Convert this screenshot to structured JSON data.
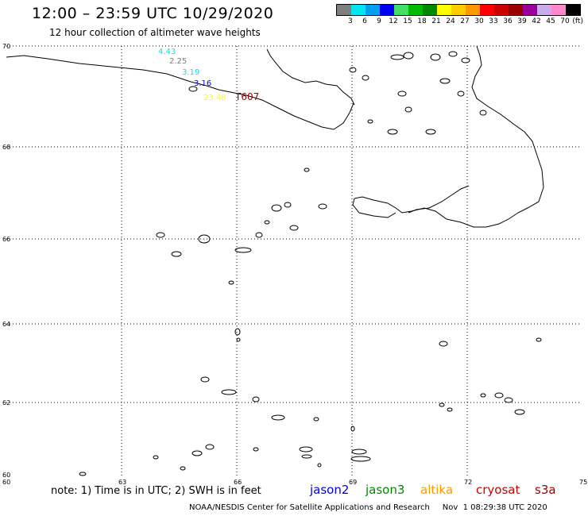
{
  "header": {
    "title": "12:00 – 23:59 UTC 10/29/2020",
    "subtitle": "12 hour collection of altimeter wave heights"
  },
  "color_scale": {
    "colors": [
      "#7f7f7f",
      "#00e5ee",
      "#00a0ee",
      "#0000ee",
      "#44dd66",
      "#00bb00",
      "#008800",
      "#ffff00",
      "#ffcc00",
      "#ff9900",
      "#ff0000",
      "#cc0000",
      "#990000",
      "#990099",
      "#ccaaee",
      "#ff88cc",
      "#000000"
    ],
    "labels": [
      "3",
      "6",
      "9",
      "12",
      "15",
      "18",
      "21",
      "24",
      "27",
      "30",
      "33",
      "36",
      "39",
      "42",
      "45",
      "70",
      "(ft)"
    ]
  },
  "map": {
    "lat_labels": [
      "70",
      "68",
      "66",
      "64",
      "62",
      "60"
    ],
    "lon_labels": [
      "60",
      "63",
      "66",
      "69",
      "72",
      "75"
    ],
    "observations": [
      {
        "text": "4.43",
        "color": "#00e5ee"
      },
      {
        "text": "2.25",
        "color": "#7f7f7f"
      },
      {
        "text": "3.19",
        "color": "#00e5ee"
      },
      {
        "text": "3.16",
        "color": "#0000ee"
      },
      {
        "text": "23.48",
        "color": "#ffff00"
      },
      {
        "text": "T607",
        "color": "#990000"
      }
    ]
  },
  "footer": {
    "note": "note: 1) Time is in UTC; 2) SWH is in feet",
    "satellites": [
      {
        "name": "jason2",
        "color": "#0000ee"
      },
      {
        "name": "jason3",
        "color": "#008800"
      },
      {
        "name": "altika",
        "color": "#ff9900"
      },
      {
        "name": "cryosat",
        "color": "#cc0000"
      },
      {
        "name": "s3a",
        "color": "#990000"
      }
    ],
    "credit": "NOAA/NESDIS Center for Satellite Applications and Research     Nov  1 08:29:38 UTC 2020"
  }
}
